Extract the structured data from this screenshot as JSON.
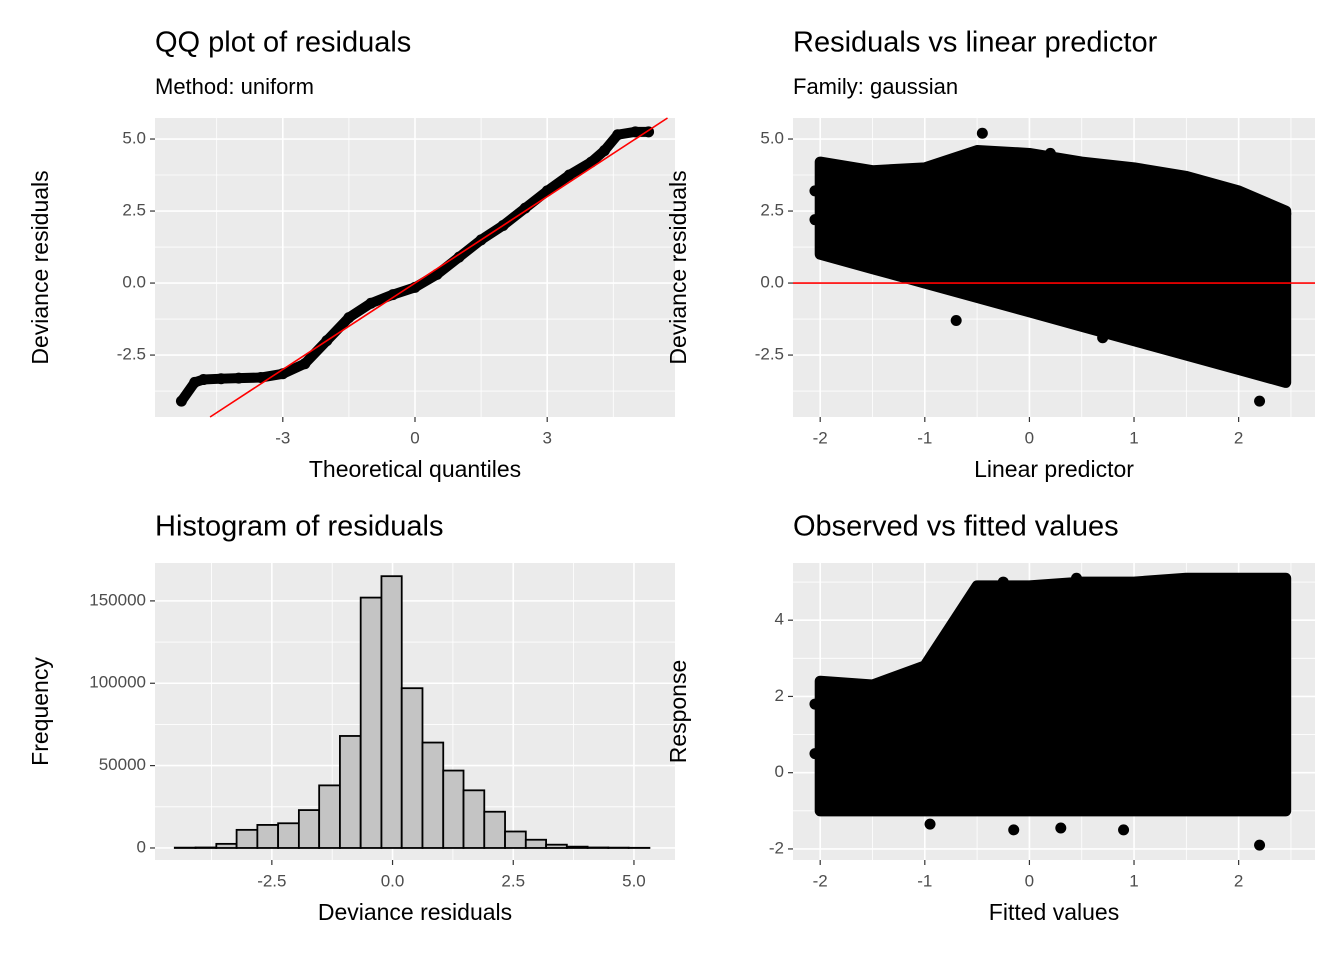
{
  "chart_data": [
    {
      "type": "qq",
      "title": "QQ plot of residuals",
      "subtitle": "Method: uniform",
      "x_label": "Theoretical quantiles",
      "y_label": "Deviance residuals",
      "xlim": [
        -5.9,
        5.9
      ],
      "ylim": [
        -4.65,
        5.73
      ],
      "xticks": [
        -3,
        0,
        3
      ],
      "yticks": [
        {
          "value": -2.5,
          "label": "-2.5"
        },
        {
          "value": 0,
          "label": "0.0"
        },
        {
          "value": 2.5,
          "label": "2.5"
        },
        {
          "value": 5,
          "label": "5.0"
        }
      ],
      "grid": true,
      "color": "#000000",
      "x": [
        -5.3,
        -5.0,
        -4.8,
        -4.4,
        -4.0,
        -3.5,
        -3.0,
        -2.5,
        -2.0,
        -1.5,
        -1.0,
        -0.5,
        0,
        0.5,
        1.0,
        1.5,
        2.0,
        2.5,
        3.0,
        3.5,
        4.0,
        4.3,
        4.6,
        5.0,
        5.3
      ],
      "values": [
        -4.1,
        -3.45,
        -3.35,
        -3.32,
        -3.3,
        -3.28,
        -3.15,
        -2.8,
        -2.0,
        -1.2,
        -0.7,
        -0.4,
        -0.15,
        0.3,
        0.9,
        1.5,
        2.0,
        2.6,
        3.2,
        3.75,
        4.2,
        4.6,
        5.15,
        5.25,
        5.25
      ],
      "reference_line": {
        "slope": 1,
        "intercept": 0,
        "color": "#ff0000"
      }
    },
    {
      "type": "scatter",
      "title": "Residuals vs linear predictor",
      "subtitle": "Family: gaussian",
      "x_label": "Linear predictor",
      "y_label": "Deviance residuals",
      "xlim": [
        -2.26,
        2.73
      ],
      "ylim": [
        -4.65,
        5.73
      ],
      "xticks": [
        -2,
        -1,
        0,
        1,
        2
      ],
      "yticks": [
        {
          "value": -2.5,
          "label": "-2.5"
        },
        {
          "value": 0,
          "label": "0.0"
        },
        {
          "value": 2.5,
          "label": "2.5"
        },
        {
          "value": 5,
          "label": "5.0"
        }
      ],
      "grid": true,
      "color": "#000000",
      "band": {
        "x": [
          -2,
          -1.5,
          -1,
          -0.5,
          0,
          0.5,
          1,
          1.5,
          2,
          2.45
        ],
        "upper": [
          4.2,
          3.9,
          4.0,
          4.6,
          4.5,
          4.2,
          4.0,
          3.7,
          3.2,
          2.5
        ],
        "lower": [
          1.0,
          0.5,
          0.0,
          -0.5,
          -1.0,
          -1.5,
          -2.0,
          -2.5,
          -3.0,
          -3.45
        ]
      },
      "x": [
        -2.05,
        -2.05,
        -0.45,
        0.2,
        0.25,
        2.2,
        -0.7,
        0.7,
        2.45,
        -1.3
      ],
      "values": [
        3.2,
        2.2,
        5.2,
        4.5,
        4.3,
        -4.1,
        -1.3,
        -1.9,
        2.4,
        1.8
      ],
      "reference_line": {
        "slope": 0,
        "intercept": 0,
        "color": "#ff0000"
      }
    },
    {
      "type": "histogram",
      "title": "Histogram of residuals",
      "x_label": "Deviance residuals",
      "y_label": "Frequency",
      "xlim": [
        -4.92,
        5.85
      ],
      "ylim": [
        -7300,
        173000
      ],
      "xticks": [
        -2.5,
        {
          "value": 0,
          "label": "0.0"
        },
        2.5,
        {
          "value": 5,
          "label": "5.0"
        }
      ],
      "yticks": [
        0,
        50000,
        100000,
        150000
      ],
      "grid": true,
      "color": "#c4c4c4",
      "bins": [
        -4.51,
        -4.08,
        -3.65,
        -3.23,
        -2.8,
        -2.37,
        -1.94,
        -1.52,
        -1.09,
        -0.66,
        -0.23,
        0.19,
        0.62,
        1.05,
        1.47,
        1.9,
        2.33,
        2.76,
        3.18,
        3.61,
        4.04,
        4.47,
        4.89,
        5.32
      ],
      "values": [
        200,
        300,
        2500,
        11000,
        14000,
        15000,
        23000,
        38000,
        68000,
        152000,
        165000,
        97000,
        64000,
        47000,
        35000,
        22000,
        10000,
        5000,
        2000,
        800,
        300,
        200,
        100
      ]
    },
    {
      "type": "scatter",
      "title": "Observed vs fitted values",
      "x_label": "Fitted values",
      "y_label": "Response",
      "xlim": [
        -2.26,
        2.73
      ],
      "ylim": [
        -2.29,
        5.5
      ],
      "xticks": [
        -2,
        -1,
        0,
        1,
        2
      ],
      "yticks": [
        -2,
        0,
        2,
        4
      ],
      "grid": true,
      "color": "#000000",
      "band": {
        "x": [
          -2,
          -1.5,
          -1,
          -0.5,
          0,
          0.5,
          1,
          1.5,
          2,
          2.45
        ],
        "upper": [
          2.4,
          2.3,
          2.8,
          4.9,
          4.9,
          5.0,
          5.0,
          5.1,
          5.1,
          5.1
        ],
        "lower": [
          -1,
          -1,
          -1,
          -1,
          -1,
          -1,
          -1,
          -1,
          -1,
          -1
        ]
      },
      "x": [
        -0.95,
        -0.15,
        0.3,
        0.9,
        2.2,
        -2.05,
        -1.7,
        -2.05,
        -0.25,
        0.45
      ],
      "values": [
        -1.35,
        -1.5,
        -1.45,
        -1.5,
        -1.9,
        1.8,
        1.6,
        0.5,
        5.0,
        5.1
      ]
    }
  ]
}
